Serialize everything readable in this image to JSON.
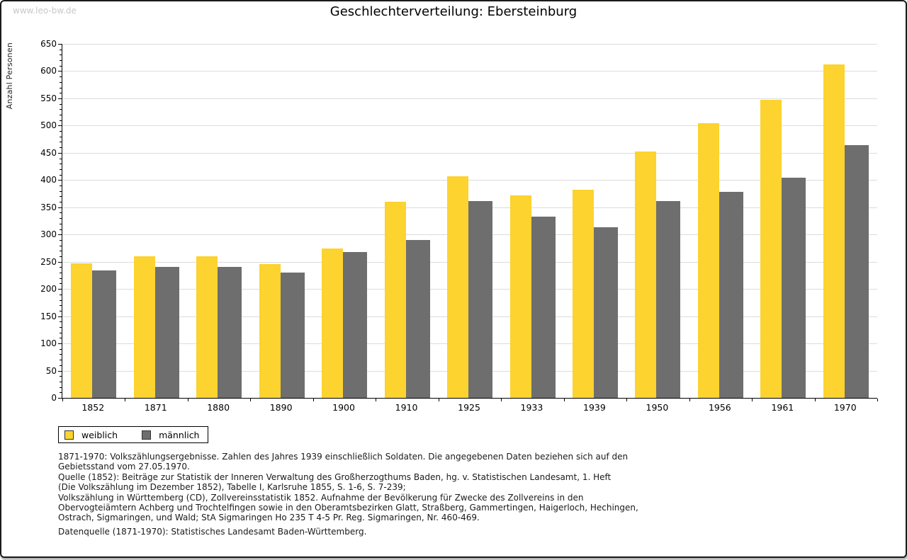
{
  "page": {
    "watermark": "www.leo-bw.de",
    "title": "Geschlechterverteilung: Ebersteinburg"
  },
  "chart_data": {
    "type": "bar",
    "title": "Geschlechterverteilung: Ebersteinburg",
    "xlabel": "",
    "ylabel": "Anzahl Personen",
    "ylim": [
      0,
      650
    ],
    "ytick_step": 50,
    "yminor_step": 10,
    "grid": true,
    "legend_position": "bottom-left",
    "categories": [
      "1852",
      "1871",
      "1880",
      "1890",
      "1900",
      "1910",
      "1925",
      "1933",
      "1939",
      "1950",
      "1956",
      "1961",
      "1970"
    ],
    "series": [
      {
        "name": "weiblich",
        "color": "#FCD32F",
        "values": [
          247,
          260,
          260,
          246,
          275,
          360,
          407,
          372,
          382,
          452,
          505,
          548,
          613
        ]
      },
      {
        "name": "männlich",
        "color": "#6E6E6E",
        "values": [
          234,
          240,
          240,
          230,
          268,
          290,
          362,
          333,
          313,
          362,
          378,
          404,
          464
        ]
      }
    ]
  },
  "footnote": {
    "lines": [
      "1871-1970: Volkszählungsergebnisse. Zahlen des Jahres 1939 einschließlich Soldaten. Die angegebenen Daten beziehen sich auf den",
      "Gebietsstand vom 27.05.1970.",
      "Quelle (1852): Beiträge zur Statistik der Inneren Verwaltung des Großherzogthums Baden, hg. v. Statistischen Landesamt, 1. Heft",
      "(Die Volkszählung im Dezember 1852), Tabelle I, Karlsruhe 1855, S. 1-6, S. 7-239;",
      "Volkszählung in Württemberg (CD), Zollvereinsstatistik 1852. Aufnahme der Bevölkerung für Zwecke des Zollvereins in den",
      "Obervogteiämtern Achberg und Trochtelfingen sowie in den Oberamtsbezirken Glatt, Straßberg, Gammertingen, Haigerloch, Hechingen,",
      "Ostrach, Sigmaringen, und Wald; StA Sigmaringen Ho 235 T 4-5 Pr. Reg. Sigmaringen, Nr. 460-469."
    ],
    "source": "Datenquelle (1871-1970): Statistisches Landesamt Baden-Württemberg."
  },
  "colors": {
    "weiblich": "#FCD32F",
    "maennlich": "#6E6E6E",
    "gridline": "#DCDCDC",
    "axis": "#000000",
    "watermark": "#C8C8C8",
    "border": "#1A1A1A"
  }
}
